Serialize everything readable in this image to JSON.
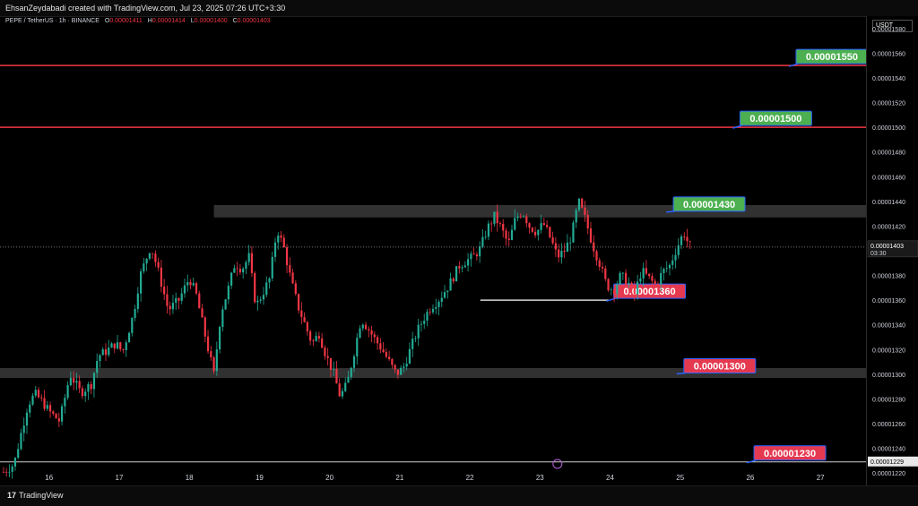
{
  "header": {
    "credit": "EhsanZeydabadi created with TradingView.com, Jul 23, 2025 07:26 UTC+3:30"
  },
  "legend": {
    "symbol": "PEPE / TetherUS · 1h · BINANCE",
    "open_key": "O",
    "open": "0.00001411",
    "high_key": "H",
    "high": "0.00001414",
    "low_key": "L",
    "low": "0.00001400",
    "close_key": "C",
    "close": "0.00001403"
  },
  "axis": {
    "unit": "USDT",
    "current_price": "0.00001403",
    "countdown": "03:30",
    "marker_price": "0.00001229"
  },
  "chart_data": {
    "type": "candlestick",
    "ylim": [
      1.21e-05,
      1.59e-05
    ],
    "y_ticks": [
      "0.00001220",
      "0.00001240",
      "0.00001260",
      "0.00001280",
      "0.00001300",
      "0.00001320",
      "0.00001340",
      "0.00001360",
      "0.00001380",
      "0.00001400",
      "0.00001420",
      "0.00001440",
      "0.00001460",
      "0.00001480",
      "0.00001500",
      "0.00001520",
      "0.00001540",
      "0.00001560",
      "0.00001580"
    ],
    "x_ticks": [
      "16",
      "17",
      "18",
      "19",
      "20",
      "21",
      "22",
      "23",
      "24",
      "25",
      "26",
      "27"
    ],
    "xlim_days": [
      15.3,
      27.65
    ],
    "close_path": [
      [
        15.35,
        1221
      ],
      [
        15.5,
        1227
      ],
      [
        15.6,
        1252
      ],
      [
        15.7,
        1276
      ],
      [
        15.8,
        1284
      ],
      [
        15.9,
        1278
      ],
      [
        16.0,
        1270
      ],
      [
        16.15,
        1262
      ],
      [
        16.3,
        1300
      ],
      [
        16.45,
        1285
      ],
      [
        16.6,
        1292
      ],
      [
        16.7,
        1315
      ],
      [
        16.8,
        1318
      ],
      [
        16.95,
        1325
      ],
      [
        17.05,
        1318
      ],
      [
        17.2,
        1348
      ],
      [
        17.3,
        1380
      ],
      [
        17.45,
        1404
      ],
      [
        17.55,
        1385
      ],
      [
        17.7,
        1352
      ],
      [
        17.85,
        1360
      ],
      [
        18.0,
        1378
      ],
      [
        18.1,
        1364
      ],
      [
        18.25,
        1325
      ],
      [
        18.35,
        1300
      ],
      [
        18.45,
        1350
      ],
      [
        18.55,
        1368
      ],
      [
        18.65,
        1390
      ],
      [
        18.75,
        1385
      ],
      [
        18.85,
        1395
      ],
      [
        18.95,
        1355
      ],
      [
        19.05,
        1366
      ],
      [
        19.15,
        1378
      ],
      [
        19.25,
        1418
      ],
      [
        19.35,
        1402
      ],
      [
        19.45,
        1376
      ],
      [
        19.55,
        1355
      ],
      [
        19.65,
        1340
      ],
      [
        19.75,
        1325
      ],
      [
        19.85,
        1333
      ],
      [
        19.95,
        1315
      ],
      [
        20.05,
        1302
      ],
      [
        20.15,
        1282
      ],
      [
        20.25,
        1292
      ],
      [
        20.35,
        1318
      ],
      [
        20.45,
        1345
      ],
      [
        20.55,
        1337
      ],
      [
        20.65,
        1328
      ],
      [
        20.75,
        1320
      ],
      [
        20.85,
        1310
      ],
      [
        20.95,
        1300
      ],
      [
        21.05,
        1305
      ],
      [
        21.15,
        1320
      ],
      [
        21.25,
        1335
      ],
      [
        21.35,
        1346
      ],
      [
        21.45,
        1355
      ],
      [
        21.55,
        1360
      ],
      [
        21.7,
        1372
      ],
      [
        21.85,
        1388
      ],
      [
        21.95,
        1392
      ],
      [
        22.05,
        1395
      ],
      [
        22.15,
        1402
      ],
      [
        22.25,
        1418
      ],
      [
        22.35,
        1428
      ],
      [
        22.45,
        1418
      ],
      [
        22.55,
        1405
      ],
      [
        22.65,
        1426
      ],
      [
        22.75,
        1432
      ],
      [
        22.85,
        1420
      ],
      [
        22.95,
        1415
      ],
      [
        23.05,
        1422
      ],
      [
        23.15,
        1410
      ],
      [
        23.25,
        1395
      ],
      [
        23.35,
        1400
      ],
      [
        23.45,
        1412
      ],
      [
        23.55,
        1440
      ],
      [
        23.65,
        1425
      ],
      [
        23.75,
        1405
      ],
      [
        23.85,
        1390
      ],
      [
        23.95,
        1372
      ],
      [
        24.05,
        1368
      ],
      [
        24.15,
        1380
      ],
      [
        24.25,
        1375
      ],
      [
        24.35,
        1365
      ],
      [
        24.45,
        1384
      ],
      [
        24.55,
        1378
      ],
      [
        24.65,
        1372
      ],
      [
        24.75,
        1383
      ],
      [
        24.85,
        1388
      ],
      [
        24.95,
        1402
      ],
      [
        25.05,
        1415
      ],
      [
        25.1,
        1408
      ],
      [
        25.15,
        1403
      ]
    ],
    "current_price": 1403
  },
  "levels": [
    {
      "label": "0.00001550",
      "kind": "resistance-line",
      "price": 1550,
      "color": "#f23645",
      "tag_color": "#4caf50"
    },
    {
      "label": "0.00001500",
      "kind": "resistance-line",
      "price": 1500,
      "color": "#f23645",
      "tag_color": "#4caf50"
    },
    {
      "label": "0.00001430",
      "kind": "zone",
      "price_low": 1427,
      "price_high": 1437,
      "tag_color": "#4caf50"
    },
    {
      "label": "0.00001360",
      "kind": "short-line",
      "price": 1360,
      "color": "#ffffff",
      "tag_color": "#e53950"
    },
    {
      "label": "0.00001300",
      "kind": "zone",
      "price_low": 1297,
      "price_high": 1305,
      "tag_color": "#e53950"
    },
    {
      "label": "0.00001230",
      "kind": "thin-line",
      "price": 1229,
      "color": "#cfcfcf",
      "tag_color": "#e53950"
    }
  ],
  "footer": {
    "brand": "TradingView",
    "logo_glyph": "17"
  },
  "colors": {
    "up": "#22ab94",
    "down": "#f23645",
    "background": "#000000"
  }
}
